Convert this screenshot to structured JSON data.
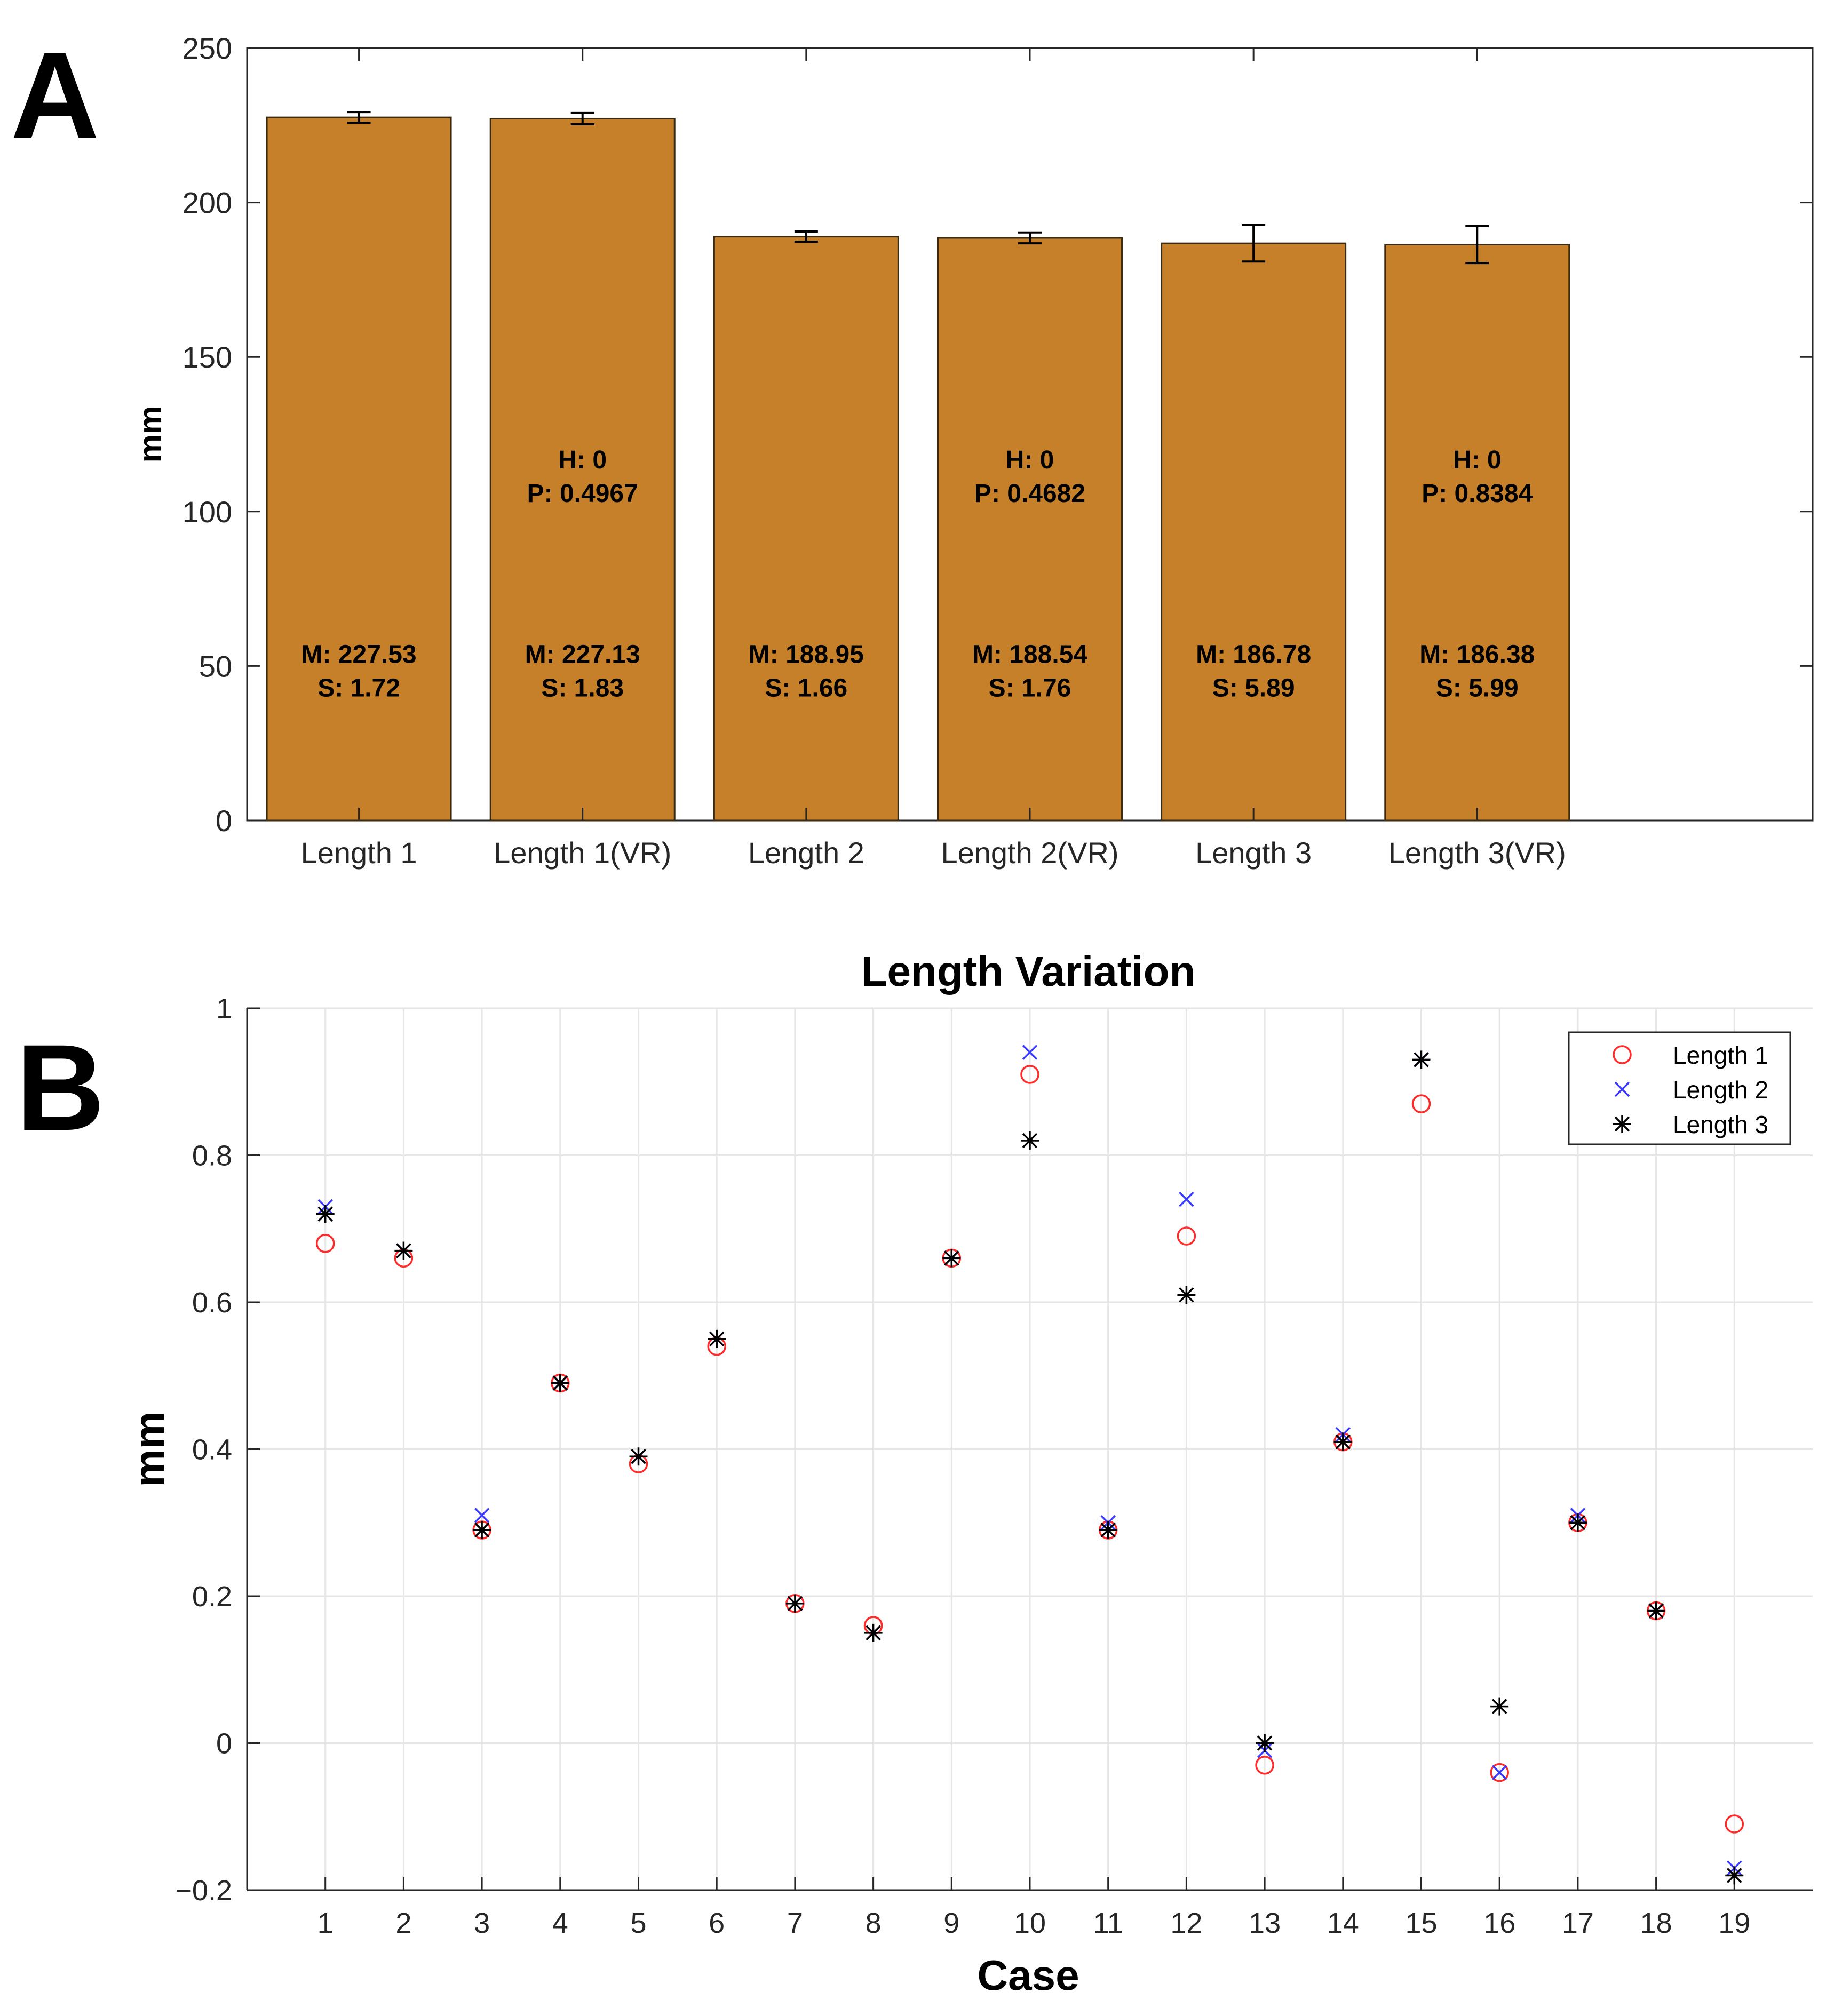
{
  "panel_labels": [
    "A",
    "B"
  ],
  "colors": {
    "bar_fill": "#C6802A",
    "bar_edge": "#3a2a10",
    "grid": "#e6e6e6",
    "axis": "#262626",
    "series_length1": "#ff2a2a",
    "series_length2": "#3a3aff",
    "series_length3": "#000000"
  },
  "chart_data": [
    {
      "type": "bar",
      "panel": "A",
      "title": "",
      "xlabel": "",
      "ylabel": "mm",
      "ylim": [
        0,
        250
      ],
      "yticks": [
        0,
        50,
        100,
        150,
        200,
        250
      ],
      "grid": true,
      "categories": [
        "Length 1",
        "Length 1(VR)",
        "Length 2",
        "Length 2(VR)",
        "Length 3",
        "Length 3(VR)"
      ],
      "values": [
        227.53,
        227.13,
        188.95,
        188.54,
        186.78,
        186.38
      ],
      "errors": [
        1.72,
        1.83,
        1.66,
        1.76,
        5.89,
        5.99
      ],
      "stat_labels": [
        {
          "m": "M: 227.53",
          "s": "S: 1.72",
          "h": null,
          "p": null
        },
        {
          "m": "M: 227.13",
          "s": "S: 1.83",
          "h": "H: 0",
          "p": "P: 0.4967"
        },
        {
          "m": "M: 188.95",
          "s": "S: 1.66",
          "h": null,
          "p": null
        },
        {
          "m": "M: 188.54",
          "s": "S: 1.76",
          "h": "H: 0",
          "p": "P: 0.4682"
        },
        {
          "m": "M: 186.78",
          "s": "S: 5.89",
          "h": null,
          "p": null
        },
        {
          "m": "M: 186.38",
          "s": "S: 5.99",
          "h": "H: 0",
          "p": "P: 0.8384"
        }
      ]
    },
    {
      "type": "scatter",
      "panel": "B",
      "title": "Length Variation",
      "xlabel": "Case",
      "ylabel": "mm",
      "xlim": [
        0,
        20
      ],
      "ylim": [
        -0.2,
        1
      ],
      "xticks": [
        1,
        2,
        3,
        4,
        5,
        6,
        7,
        8,
        9,
        10,
        11,
        12,
        13,
        14,
        15,
        16,
        17,
        18,
        19
      ],
      "yticks": [
        -0.2,
        0,
        0.2,
        0.4,
        0.6,
        0.8,
        1
      ],
      "ytick_labels": [
        "−0.2",
        "0",
        "0.2",
        "0.4",
        "0.6",
        "0.8",
        "1"
      ],
      "grid": true,
      "legend_position": "top-right",
      "x": [
        1,
        2,
        3,
        4,
        5,
        6,
        7,
        8,
        9,
        10,
        11,
        12,
        13,
        14,
        15,
        16,
        17,
        18,
        19
      ],
      "series": [
        {
          "name": "Length 1",
          "marker": "circle",
          "color": "#ff2a2a",
          "values": [
            0.68,
            0.66,
            0.29,
            0.49,
            0.38,
            0.54,
            0.19,
            0.16,
            0.66,
            0.91,
            0.29,
            0.69,
            -0.03,
            0.41,
            0.87,
            -0.04,
            0.3,
            0.18,
            -0.11
          ]
        },
        {
          "name": "Length 2",
          "marker": "x",
          "color": "#3a3aff",
          "values": [
            0.73,
            0.67,
            0.31,
            0.49,
            0.39,
            0.55,
            0.19,
            0.15,
            0.66,
            0.94,
            0.3,
            0.74,
            -0.01,
            0.42,
            0.93,
            -0.04,
            0.31,
            0.18,
            -0.17
          ]
        },
        {
          "name": "Length 3",
          "marker": "asterisk",
          "color": "#000000",
          "values": [
            0.72,
            0.67,
            0.29,
            0.49,
            0.39,
            0.55,
            0.19,
            0.15,
            0.66,
            0.82,
            0.29,
            0.61,
            0.0,
            0.41,
            0.93,
            0.05,
            0.3,
            0.18,
            -0.18
          ]
        }
      ]
    }
  ]
}
